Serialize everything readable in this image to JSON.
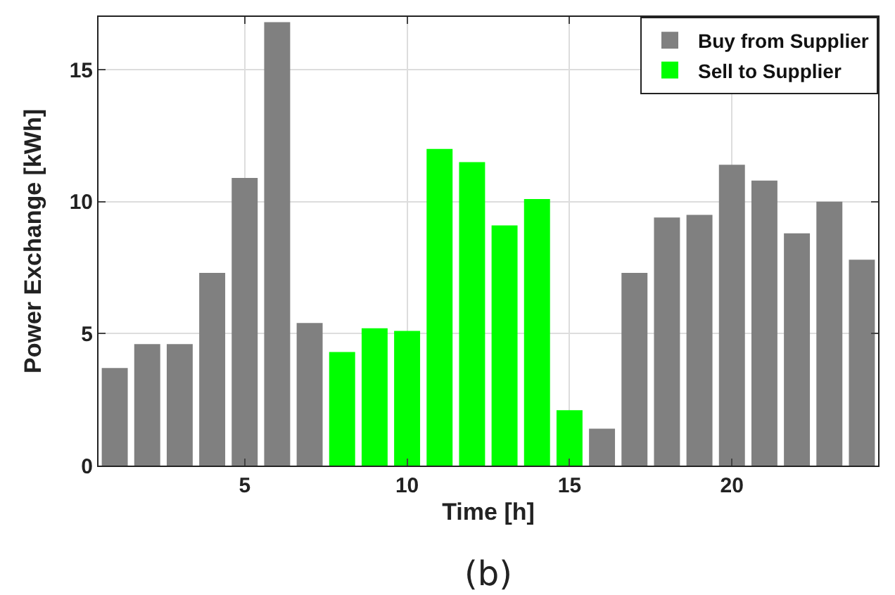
{
  "chart_data": {
    "type": "bar",
    "xlabel": "Time [h]",
    "ylabel": "Power Exchange [kWh]",
    "x": [
      1,
      2,
      3,
      4,
      5,
      6,
      7,
      8,
      9,
      10,
      11,
      12,
      13,
      14,
      15,
      16,
      17,
      18,
      19,
      20,
      21,
      22,
      23,
      24
    ],
    "series": [
      {
        "name": "Buy from Supplier",
        "color": "#808080",
        "values": [
          3.7,
          4.6,
          4.6,
          7.3,
          10.9,
          16.8,
          5.4,
          null,
          null,
          null,
          null,
          null,
          null,
          null,
          null,
          1.4,
          7.3,
          9.4,
          9.5,
          11.4,
          10.8,
          8.8,
          10.0,
          7.8
        ]
      },
      {
        "name": "Sell to Supplier",
        "color": "#00ff00",
        "values": [
          null,
          null,
          null,
          null,
          null,
          null,
          null,
          4.3,
          5.2,
          5.1,
          12.0,
          11.5,
          9.1,
          10.1,
          2.1,
          null,
          null,
          null,
          null,
          null,
          null,
          null,
          null,
          null
        ]
      }
    ],
    "xlim": [
      0.5,
      24.5
    ],
    "xticks": [
      5,
      10,
      15,
      20
    ],
    "ylim": [
      0,
      17
    ],
    "yticks": [
      0,
      5,
      10,
      15
    ],
    "grid": true,
    "legend": "top right",
    "annotations": [
      "(b)"
    ]
  }
}
